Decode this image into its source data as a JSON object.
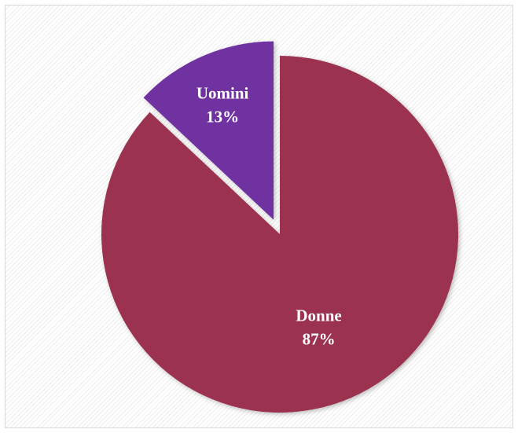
{
  "chart_data": {
    "type": "pie",
    "title": "",
    "slices": [
      {
        "label": "Donne",
        "value": 87,
        "percent_label": "87%",
        "color": "#9b3350",
        "exploded": false
      },
      {
        "label": "Uomini",
        "value": 13,
        "percent_label": "13%",
        "color": "#7030a0",
        "exploded": true
      }
    ],
    "start_angle_deg": 0,
    "direction": "clockwise_from_top",
    "legend": "none",
    "background": "diagonal-hatch"
  }
}
